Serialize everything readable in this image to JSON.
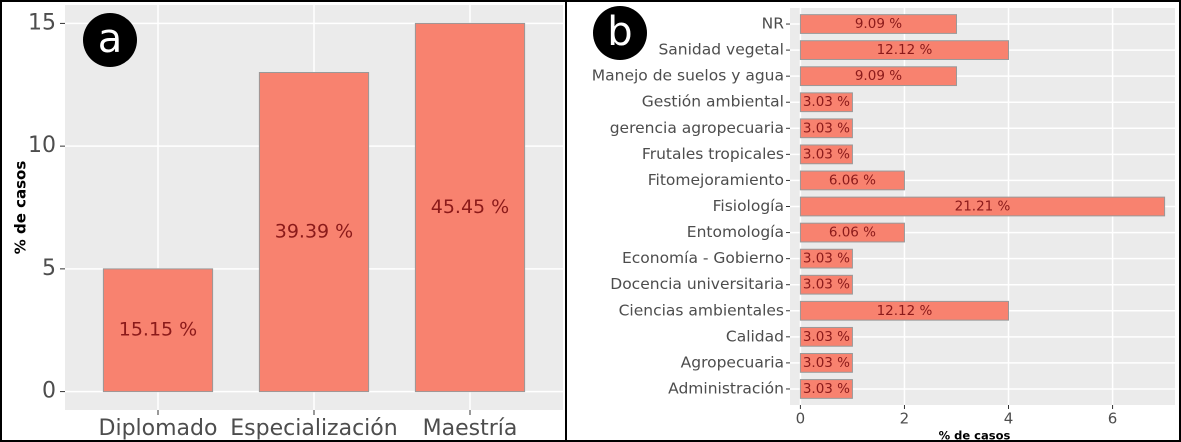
{
  "chart_data": [
    {
      "type": "bar",
      "panel_label": "a",
      "orientation": "vertical",
      "categories": [
        "Diplomado",
        "Especialización",
        "Maestría"
      ],
      "values": [
        5,
        13,
        15
      ],
      "value_labels": [
        "15.15 %",
        "39.39 %",
        "45.45 %"
      ],
      "color": "#f8826f",
      "ylabel": "% de casos",
      "ylim": [
        -0.75,
        15.75
      ],
      "yticks": [
        0,
        5,
        10,
        15
      ],
      "grid": true
    },
    {
      "type": "bar",
      "panel_label": "b",
      "orientation": "horizontal",
      "categories": [
        "NR",
        "Sanidad vegetal",
        "Manejo de suelos y agua",
        "Gestión ambiental",
        "gerencia agropecuaria",
        "Frutales tropicales",
        "Fitomejoramiento",
        "Fisiología",
        "Entomología",
        "Economía - Gobierno",
        "Docencia universitaria",
        "Ciencias ambientales",
        "Calidad",
        "Agropecuaria",
        "Administración"
      ],
      "values": [
        3,
        4,
        3,
        1,
        1,
        1,
        2,
        7,
        2,
        1,
        1,
        4,
        1,
        1,
        1
      ],
      "value_labels": [
        "9.09 %",
        "12.12 %",
        "9.09 %",
        "3.03 %",
        "3.03 %",
        "3.03 %",
        "6.06 %",
        "21.21 %",
        "6.06 %",
        "3.03 %",
        "3.03 %",
        "12.12 %",
        "3.03 %",
        "3.03 %",
        "3.03 %"
      ],
      "color": "#f8826f",
      "xlabel": "% de casos",
      "xlim": [
        -0.2,
        7.2
      ],
      "xticks": [
        0,
        2,
        4,
        6
      ],
      "grid": true
    }
  ]
}
